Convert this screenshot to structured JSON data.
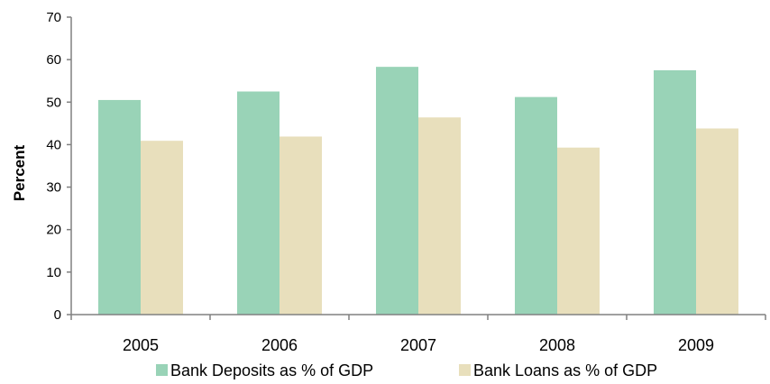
{
  "chart_data": {
    "type": "bar",
    "title": "",
    "xlabel": "",
    "ylabel": "Percent",
    "ylim": [
      0,
      70
    ],
    "yticks": [
      0,
      10,
      20,
      30,
      40,
      50,
      60,
      70
    ],
    "categories": [
      "2005",
      "2006",
      "2007",
      "2008",
      "2009"
    ],
    "series": [
      {
        "name": "Bank Deposits as % of GDP",
        "color": "#99d3b7",
        "values": [
          50.5,
          52.5,
          58.3,
          51.2,
          57.5
        ]
      },
      {
        "name": "Bank Loans as % of GDP",
        "color": "#e8dfbc",
        "values": [
          40.9,
          41.9,
          46.4,
          39.3,
          43.8
        ]
      }
    ],
    "grid": false,
    "legend": "bottom"
  }
}
